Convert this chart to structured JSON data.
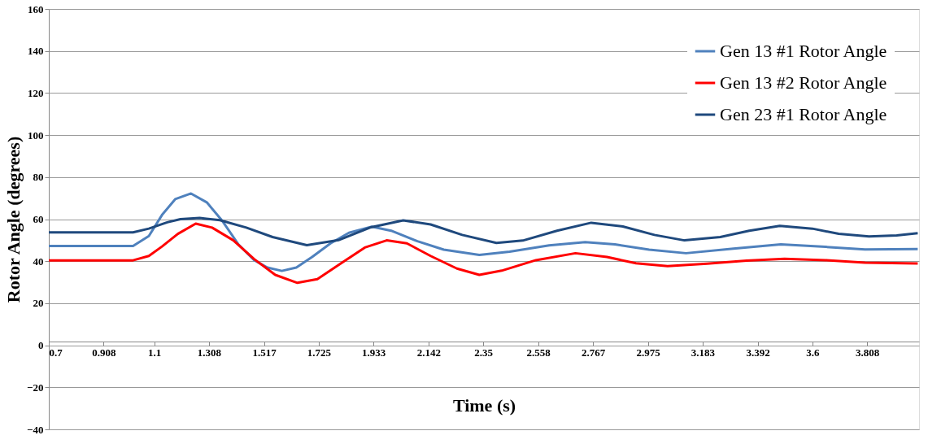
{
  "chart_data": {
    "type": "line",
    "xlabel": "Time (s)",
    "ylabel": "Rotor Angle (degrees)",
    "xlim": [
      0.7,
      4.005
    ],
    "xticks": [
      0.7,
      0.908,
      1.1,
      1.308,
      1.517,
      1.725,
      1.933,
      2.142,
      2.35,
      2.558,
      2.767,
      2.975,
      3.183,
      3.392,
      3.6,
      3.808
    ],
    "ylim": [
      -40,
      160
    ],
    "yticks": [
      -40,
      -20,
      0,
      20,
      40,
      60,
      80,
      100,
      120,
      140,
      160
    ],
    "grid": "y",
    "legend": "top right",
    "marker": "none",
    "line_style": "solid",
    "series": [
      {
        "name": "Gen 13 #1 Rotor Angle",
        "color": "#4f81bd",
        "x": [
          0.7,
          1.02,
          1.08,
          1.13,
          1.18,
          1.24,
          1.3,
          1.36,
          1.42,
          1.48,
          1.53,
          1.585,
          1.64,
          1.7,
          1.77,
          1.84,
          1.927,
          2.0,
          2.1,
          2.2,
          2.335,
          2.45,
          2.6,
          2.737,
          2.85,
          2.98,
          3.12,
          3.3,
          3.48,
          3.65,
          3.8,
          4.0
        ],
        "values": [
          47.2,
          47.2,
          52,
          62,
          69.5,
          72.2,
          68,
          59,
          48,
          40.5,
          37,
          35.4,
          37,
          42,
          48.5,
          53.5,
          56.4,
          54.5,
          49.5,
          45.5,
          43.0,
          44.5,
          47.5,
          49.1,
          48,
          45.5,
          43.8,
          46,
          48.0,
          46.8,
          45.6,
          45.8
        ]
      },
      {
        "name": "Gen 13 #2 Rotor Angle",
        "color": "#ff0000",
        "x": [
          0.7,
          1.02,
          1.08,
          1.13,
          1.19,
          1.258,
          1.32,
          1.4,
          1.48,
          1.56,
          1.644,
          1.72,
          1.81,
          1.9,
          1.983,
          2.06,
          2.15,
          2.25,
          2.335,
          2.42,
          2.55,
          2.7,
          2.82,
          2.93,
          3.05,
          3.2,
          3.35,
          3.494,
          3.65,
          3.8,
          4.0
        ],
        "values": [
          40.4,
          40.4,
          42.5,
          47,
          53,
          57.9,
          56,
          50,
          41,
          33.5,
          29.7,
          31.5,
          39,
          46.5,
          49.9,
          48.5,
          42.5,
          36.5,
          33.5,
          35.5,
          40.5,
          43.8,
          42,
          39,
          37.7,
          38.8,
          40.3,
          41.1,
          40.5,
          39.3,
          38.9
        ]
      },
      {
        "name": "Gen 23 #1 Rotor Angle",
        "color": "#1f497d",
        "x": [
          0.7,
          1.02,
          1.08,
          1.15,
          1.2,
          1.273,
          1.35,
          1.45,
          1.55,
          1.68,
          1.8,
          1.92,
          2.046,
          2.15,
          2.27,
          2.4,
          2.5,
          2.63,
          2.76,
          2.88,
          3.0,
          3.114,
          3.25,
          3.36,
          3.476,
          3.6,
          3.7,
          3.815,
          3.92,
          4.0
        ],
        "values": [
          53.7,
          53.7,
          55.5,
          58.5,
          60,
          60.6,
          59.5,
          56,
          51.5,
          47.6,
          50,
          56,
          59.4,
          57.5,
          52.5,
          48.7,
          49.8,
          54.5,
          58.3,
          56.5,
          52.5,
          49.9,
          51.5,
          54.5,
          56.8,
          55.5,
          53,
          51.8,
          52.3,
          53.3
        ]
      }
    ]
  }
}
